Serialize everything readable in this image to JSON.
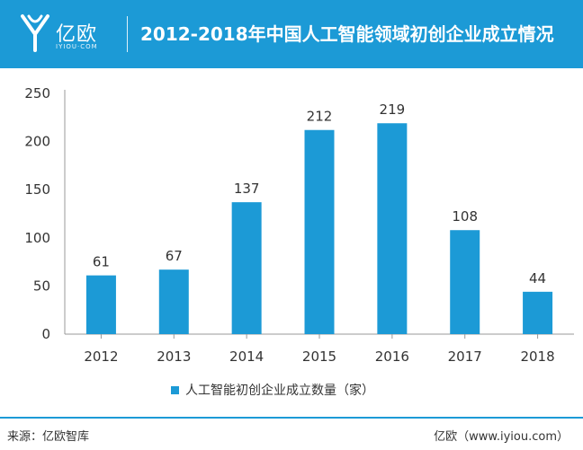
{
  "header": {
    "logo_text": "亿欧",
    "logo_sub": "IYIOU·COM",
    "title": "2012-2018年中国人工智能领域初创企业成立情况"
  },
  "chart_data": {
    "type": "bar",
    "categories": [
      "2012",
      "2013",
      "2014",
      "2015",
      "2016",
      "2017",
      "2018"
    ],
    "series": [
      {
        "name": "人工智能初创企业成立数量（家）",
        "values": [
          61,
          67,
          137,
          212,
          219,
          108,
          44
        ]
      }
    ],
    "ylim": [
      0,
      250
    ],
    "yticks": [
      0,
      50,
      100,
      150,
      200,
      250
    ],
    "title": "",
    "xlabel": "",
    "ylabel": "",
    "grid": false,
    "legend_position": "bottom",
    "bar_color": "#1c9ad6"
  },
  "footer": {
    "source_left": "来源：亿欧智库",
    "source_right": "亿欧（www.iyiou.com）"
  },
  "colors": {
    "accent": "#1c9ad6"
  }
}
